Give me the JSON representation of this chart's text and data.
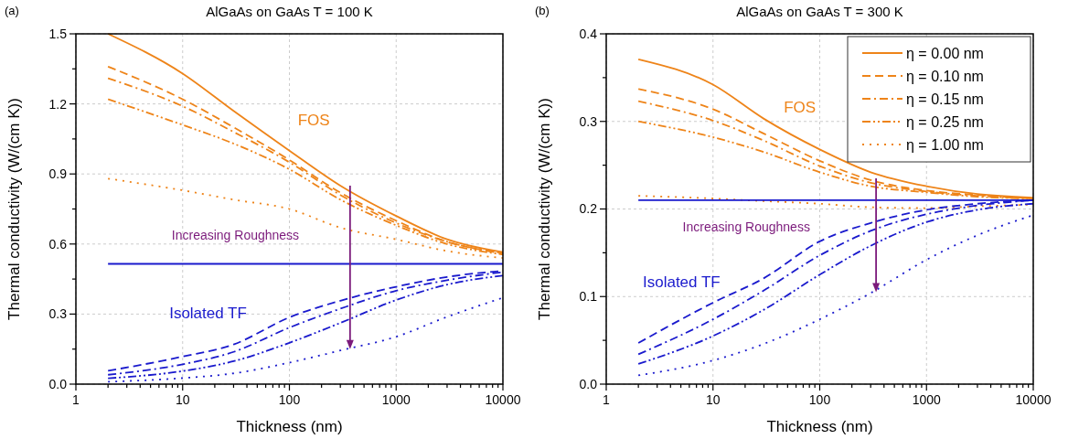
{
  "chart_data": [
    {
      "type": "line",
      "title": "AlGaAs on GaAs T = 100 K",
      "xlabel": "Thickness (nm)",
      "ylabel": "Thermal conductivity (W/(cm K))",
      "log": "x",
      "grid": true,
      "x": [
        2,
        10,
        30,
        100,
        300,
        1000,
        3000,
        10000
      ],
      "xlim": [
        1,
        10000
      ],
      "xticks": [
        1,
        {
          "value": 2,
          "label": null
        },
        {
          "value": 3,
          "label": null
        },
        {
          "value": 4,
          "label": null
        },
        {
          "value": 5,
          "label": null
        },
        {
          "value": 6,
          "label": null
        },
        {
          "value": 7,
          "label": null
        },
        {
          "value": 8,
          "label": null
        },
        {
          "value": 9,
          "label": null
        },
        10,
        {
          "value": 20,
          "label": null
        },
        {
          "value": 30,
          "label": null
        },
        {
          "value": 40,
          "label": null
        },
        {
          "value": 50,
          "label": null
        },
        {
          "value": 60,
          "label": null
        },
        {
          "value": 70,
          "label": null
        },
        {
          "value": 80,
          "label": null
        },
        {
          "value": 90,
          "label": null
        },
        100,
        {
          "value": 200,
          "label": null
        },
        {
          "value": 300,
          "label": null
        },
        {
          "value": 400,
          "label": null
        },
        {
          "value": 500,
          "label": null
        },
        {
          "value": 600,
          "label": null
        },
        {
          "value": 700,
          "label": null
        },
        {
          "value": 800,
          "label": null
        },
        {
          "value": 900,
          "label": null
        },
        1000,
        {
          "value": 2000,
          "label": null
        },
        {
          "value": 3000,
          "label": null
        },
        {
          "value": 4000,
          "label": null
        },
        {
          "value": 5000,
          "label": null
        },
        {
          "value": 6000,
          "label": null
        },
        {
          "value": 7000,
          "label": null
        },
        {
          "value": 8000,
          "label": null
        },
        {
          "value": 9000,
          "label": null
        },
        10000
      ],
      "ylim": [
        0,
        1.5
      ],
      "yticks": [
        {
          "value": 0,
          "label": "0.0"
        },
        {
          "value": 0.15,
          "label": null
        },
        0.3,
        {
          "value": 0.45,
          "label": null
        },
        0.6,
        {
          "value": 0.75,
          "label": null
        },
        0.9,
        {
          "value": 1.05,
          "label": null
        },
        1.2,
        {
          "value": 1.35,
          "label": null
        },
        1.5
      ],
      "series": [
        {
          "color": "#ee8419",
          "line_style": "solid",
          "values": [
            1.5,
            1.33,
            1.17,
            1.0,
            0.85,
            0.72,
            0.62,
            0.565
          ]
        },
        {
          "color": "#ee8419",
          "line_style": "dashed",
          "values": [
            1.36,
            1.22,
            1.1,
            0.96,
            0.82,
            0.7,
            0.61,
            0.56
          ]
        },
        {
          "color": "#ee8419",
          "line_style": "dashdot",
          "values": [
            1.31,
            1.19,
            1.08,
            0.95,
            0.81,
            0.69,
            0.61,
            0.56
          ]
        },
        {
          "color": "#ee8419",
          "line_style": "dashdotdot",
          "values": [
            1.22,
            1.11,
            1.03,
            0.92,
            0.79,
            0.68,
            0.6,
            0.555
          ]
        },
        {
          "color": "#ee8419",
          "line_style": "dotted",
          "values": [
            0.88,
            0.83,
            0.79,
            0.75,
            0.67,
            0.62,
            0.57,
            0.54
          ]
        },
        {
          "color": "#1a1acd",
          "line_style": "solid",
          "values": [
            0.515,
            0.515,
            0.515,
            0.515,
            0.515,
            0.515,
            0.515,
            0.515
          ]
        },
        {
          "color": "#1a1acd",
          "line_style": "dashed",
          "values": [
            0.057,
            0.118,
            0.17,
            0.286,
            0.357,
            0.417,
            0.459,
            0.485
          ]
        },
        {
          "color": "#1a1acd",
          "line_style": "dashdot",
          "values": [
            0.04,
            0.085,
            0.138,
            0.242,
            0.323,
            0.4,
            0.445,
            0.48
          ]
        },
        {
          "color": "#1a1acd",
          "line_style": "dashdotdot",
          "values": [
            0.025,
            0.056,
            0.098,
            0.177,
            0.262,
            0.36,
            0.426,
            0.465
          ]
        },
        {
          "color": "#1a1acd",
          "line_style": "dotted",
          "values": [
            0.01,
            0.026,
            0.046,
            0.092,
            0.144,
            0.203,
            0.288,
            0.37
          ]
        }
      ],
      "annotations": [
        "(a)",
        "FOS",
        "Isolated TF",
        "Increasing Roughness"
      ]
    },
    {
      "type": "line",
      "title": "AlGaAs on GaAs T = 300 K",
      "xlabel": "Thickness (nm)",
      "ylabel": "Thermal conductivity (W/(cm K))",
      "log": "x",
      "grid": true,
      "legend": "top right",
      "x": [
        2,
        10,
        30,
        100,
        300,
        1000,
        3000,
        10000
      ],
      "xlim": [
        1,
        10000
      ],
      "xticks": [
        1,
        {
          "value": 2,
          "label": null
        },
        {
          "value": 3,
          "label": null
        },
        {
          "value": 4,
          "label": null
        },
        {
          "value": 5,
          "label": null
        },
        {
          "value": 6,
          "label": null
        },
        {
          "value": 7,
          "label": null
        },
        {
          "value": 8,
          "label": null
        },
        {
          "value": 9,
          "label": null
        },
        10,
        {
          "value": 20,
          "label": null
        },
        {
          "value": 30,
          "label": null
        },
        {
          "value": 40,
          "label": null
        },
        {
          "value": 50,
          "label": null
        },
        {
          "value": 60,
          "label": null
        },
        {
          "value": 70,
          "label": null
        },
        {
          "value": 80,
          "label": null
        },
        {
          "value": 90,
          "label": null
        },
        100,
        {
          "value": 200,
          "label": null
        },
        {
          "value": 300,
          "label": null
        },
        {
          "value": 400,
          "label": null
        },
        {
          "value": 500,
          "label": null
        },
        {
          "value": 600,
          "label": null
        },
        {
          "value": 700,
          "label": null
        },
        {
          "value": 800,
          "label": null
        },
        {
          "value": 900,
          "label": null
        },
        1000,
        {
          "value": 2000,
          "label": null
        },
        {
          "value": 3000,
          "label": null
        },
        {
          "value": 4000,
          "label": null
        },
        {
          "value": 5000,
          "label": null
        },
        {
          "value": 6000,
          "label": null
        },
        {
          "value": 7000,
          "label": null
        },
        {
          "value": 8000,
          "label": null
        },
        {
          "value": 9000,
          "label": null
        },
        10000
      ],
      "ylim": [
        0,
        0.4
      ],
      "yticks": [
        {
          "value": 0,
          "label": "0.0"
        },
        {
          "value": 0.05,
          "label": null
        },
        0.1,
        {
          "value": 0.15,
          "label": null
        },
        0.2,
        {
          "value": 0.25,
          "label": null
        },
        0.3,
        {
          "value": 0.35,
          "label": null
        },
        0.4
      ],
      "series": [
        {
          "name": "η = 0.00 nm",
          "color": "#ee8419",
          "line_style": "solid",
          "values": [
            0.371,
            0.342,
            0.303,
            0.268,
            0.242,
            0.226,
            0.217,
            0.213
          ]
        },
        {
          "name": "η = 0.10 nm",
          "color": "#ee8419",
          "line_style": "dashed",
          "values": [
            0.337,
            0.314,
            0.286,
            0.255,
            0.233,
            0.221,
            0.216,
            0.212
          ]
        },
        {
          "name": "η = 0.15 nm",
          "color": "#ee8419",
          "line_style": "dashdot",
          "values": [
            0.323,
            0.301,
            0.278,
            0.249,
            0.23,
            0.22,
            0.215,
            0.212
          ]
        },
        {
          "name": "η = 0.25 nm",
          "color": "#ee8419",
          "line_style": "dashdotdot",
          "values": [
            0.3,
            0.282,
            0.265,
            0.242,
            0.226,
            0.219,
            0.214,
            0.212
          ]
        },
        {
          "name": "η = 1.00 nm",
          "color": "#ee8419",
          "line_style": "dotted",
          "values": [
            0.215,
            0.212,
            0.209,
            0.206,
            0.202,
            0.201,
            0.203,
            0.205
          ]
        },
        {
          "color": "#1a1acd",
          "line_style": "solid",
          "values": [
            0.21,
            0.21,
            0.21,
            0.21,
            0.21,
            0.21,
            0.21,
            0.21
          ]
        },
        {
          "color": "#1a1acd",
          "line_style": "dashed",
          "values": [
            0.047,
            0.093,
            0.121,
            0.163,
            0.184,
            0.199,
            0.206,
            0.21
          ]
        },
        {
          "color": "#1a1acd",
          "line_style": "dashdot",
          "values": [
            0.034,
            0.074,
            0.107,
            0.147,
            0.175,
            0.194,
            0.204,
            0.21
          ]
        },
        {
          "color": "#1a1acd",
          "line_style": "dashdotdot",
          "values": [
            0.023,
            0.055,
            0.085,
            0.125,
            0.158,
            0.185,
            0.199,
            0.206
          ]
        },
        {
          "color": "#1a1acd",
          "line_style": "dotted",
          "values": [
            0.01,
            0.027,
            0.046,
            0.074,
            0.104,
            0.142,
            0.17,
            0.193
          ]
        }
      ],
      "annotations": [
        "(b)",
        "FOS",
        "Isolated TF",
        "Increasing Roughness"
      ]
    }
  ]
}
